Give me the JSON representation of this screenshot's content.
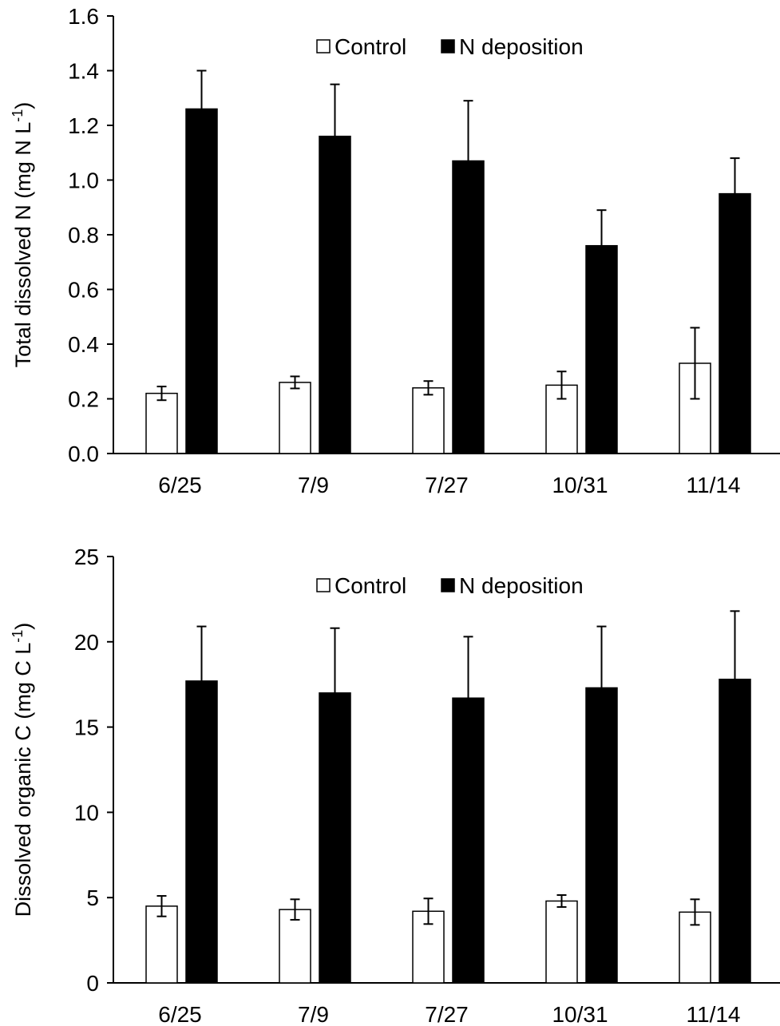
{
  "chart_data": [
    {
      "type": "bar",
      "ylabel": "Total dissolved N (mg N L",
      "ylabel_sup": "-1",
      "ylabel_close": ")",
      "ylim": [
        0,
        1.6
      ],
      "yticks": [
        "0.0",
        "0.2",
        "0.4",
        "0.6",
        "0.8",
        "1.0",
        "1.2",
        "1.4",
        "1.6"
      ],
      "ytick_values": [
        0,
        0.2,
        0.4,
        0.6,
        0.8,
        1.0,
        1.2,
        1.4,
        1.6
      ],
      "categories": [
        "6/25",
        "7/9",
        "7/27",
        "10/31",
        "11/14"
      ],
      "legend": {
        "placement": "top-center",
        "labels": [
          "Control",
          "N deposition"
        ]
      },
      "grid": false,
      "series": [
        {
          "name": "Control",
          "color": "#ffffff",
          "values": [
            0.22,
            0.26,
            0.24,
            0.25,
            0.33
          ],
          "errors": [
            0.025,
            0.022,
            0.025,
            0.05,
            0.13
          ]
        },
        {
          "name": "N deposition",
          "color": "#000000",
          "values": [
            1.26,
            1.16,
            1.07,
            0.76,
            0.95
          ],
          "errors": [
            0.14,
            0.19,
            0.22,
            0.13,
            0.13
          ]
        }
      ]
    },
    {
      "type": "bar",
      "ylabel": "Dissolved organic C (mg C L",
      "ylabel_sup": "-1",
      "ylabel_close": ")",
      "ylim": [
        0,
        25
      ],
      "yticks": [
        "0",
        "5",
        "10",
        "15",
        "20",
        "25"
      ],
      "ytick_values": [
        0,
        5,
        10,
        15,
        20,
        25
      ],
      "categories": [
        "6/25",
        "7/9",
        "7/27",
        "10/31",
        "11/14"
      ],
      "legend": {
        "placement": "top-center",
        "labels": [
          "Control",
          "N deposition"
        ]
      },
      "grid": false,
      "series": [
        {
          "name": "Control",
          "color": "#ffffff",
          "values": [
            4.5,
            4.3,
            4.2,
            4.8,
            4.15
          ],
          "errors": [
            0.6,
            0.6,
            0.75,
            0.35,
            0.75
          ]
        },
        {
          "name": "N deposition",
          "color": "#000000",
          "values": [
            17.7,
            17.0,
            16.7,
            17.3,
            17.8
          ],
          "errors": [
            3.2,
            3.8,
            3.6,
            3.6,
            4.0
          ]
        }
      ]
    }
  ]
}
